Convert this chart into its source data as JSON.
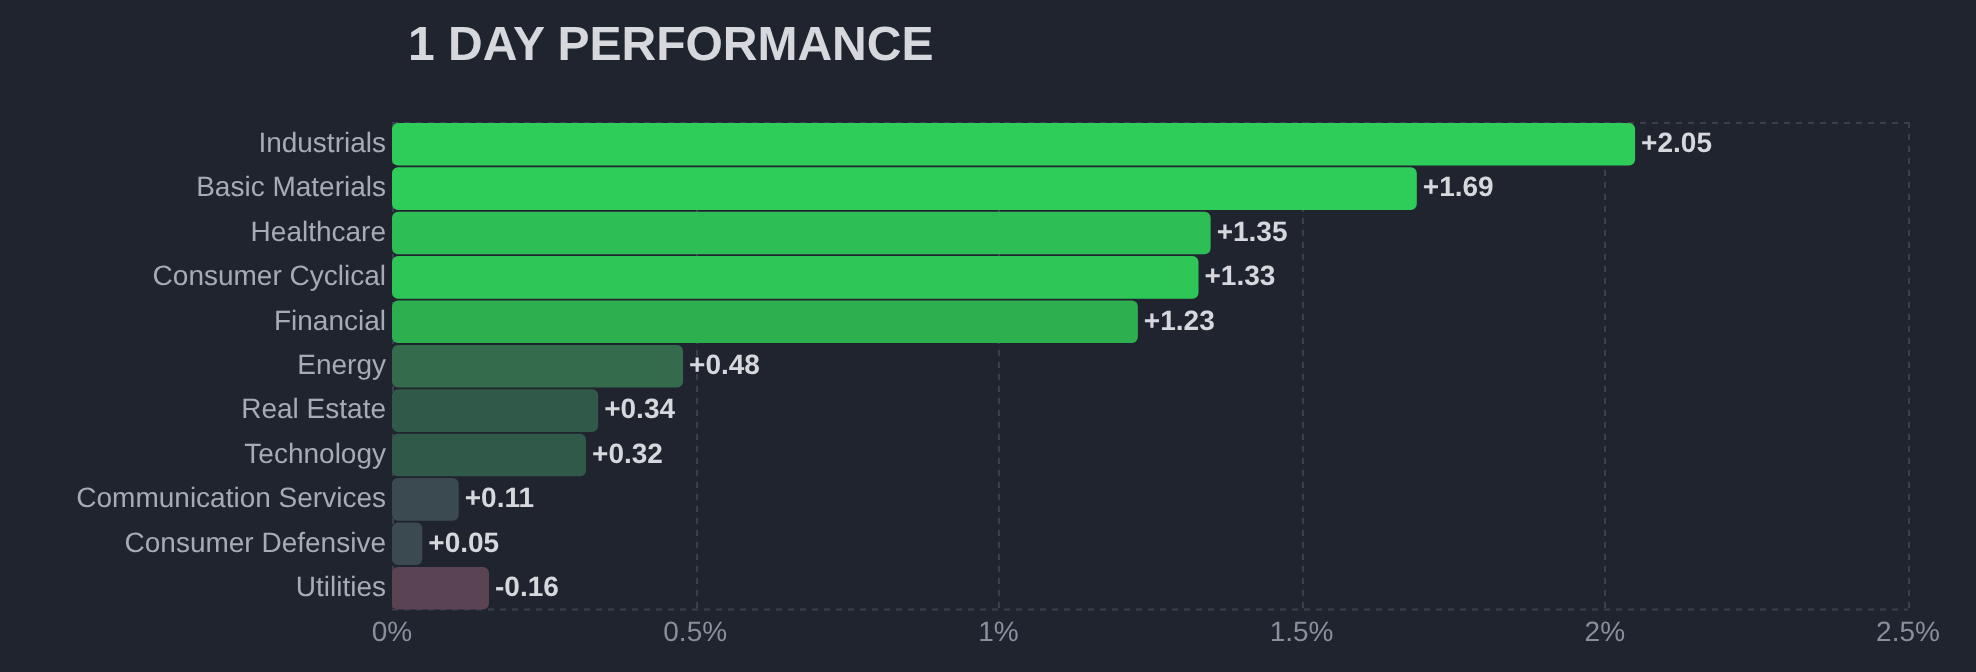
{
  "chart_data": {
    "type": "bar",
    "orientation": "horizontal",
    "title": "1 DAY PERFORMANCE",
    "categories": [
      "Industrials",
      "Basic Materials",
      "Healthcare",
      "Consumer Cyclical",
      "Financial",
      "Energy",
      "Real Estate",
      "Technology",
      "Communication Services",
      "Consumer Defensive",
      "Utilities"
    ],
    "values": [
      2.05,
      1.69,
      1.35,
      1.33,
      1.23,
      0.48,
      0.34,
      0.32,
      0.11,
      0.05,
      -0.16
    ],
    "base": [
      0,
      0,
      0,
      0,
      0,
      0,
      0,
      0,
      0,
      0,
      0.16
    ],
    "colors": [
      "#2ecd5a",
      "#2ecd5a",
      "#2dbf55",
      "#2ec757",
      "#2daf50",
      "#336b4c",
      "#31594a",
      "#31594a",
      "#3b4a50",
      "#3b4a50",
      "#5a4352"
    ],
    "value_labels": [
      "+2.05",
      "+1.69",
      "+1.35",
      "+1.33",
      "+1.23",
      "+0.48",
      "+0.34",
      "+0.32",
      "+0.11",
      "+0.05",
      "-0.16"
    ],
    "xlim": [
      0,
      2.5
    ],
    "xticks": [
      {
        "value": 0,
        "label": "0%"
      },
      {
        "value": 0.5,
        "label": "0.5%"
      },
      {
        "value": 1,
        "label": "1%"
      },
      {
        "value": 1.5,
        "label": "1.5%"
      },
      {
        "value": 2,
        "label": "2%"
      },
      {
        "value": 2.5,
        "label": "2.5%"
      }
    ],
    "grid": "x",
    "legend": false
  }
}
